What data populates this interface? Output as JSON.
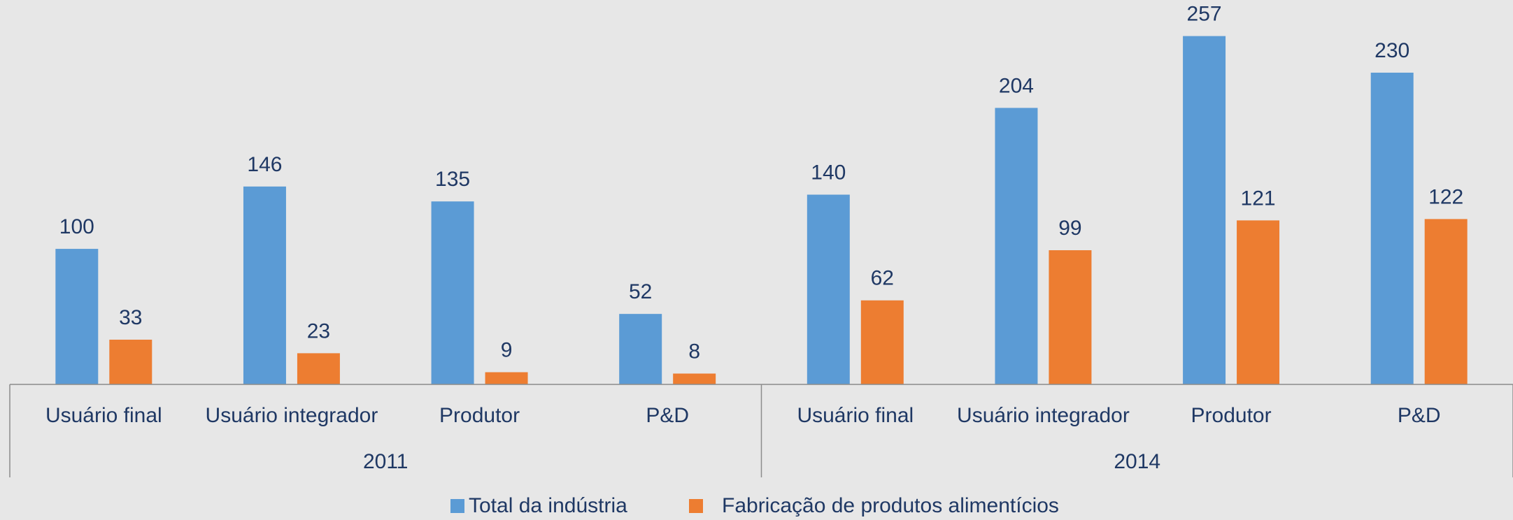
{
  "chart_data": {
    "type": "bar",
    "categories": [
      "Usuário final",
      "Usuário integrador",
      "Produtor",
      "P&D",
      "Usuário final",
      "Usuário integrador",
      "Produtor",
      "P&D"
    ],
    "groups": [
      "2011",
      "2014"
    ],
    "series": [
      {
        "name": "Total da indústria",
        "color": "#5b9bd5",
        "values": [
          100,
          146,
          135,
          52,
          140,
          204,
          257,
          230
        ]
      },
      {
        "name": "Fabricação de produtos alimentícios",
        "color": "#ed7d31",
        "values": [
          33,
          23,
          9,
          8,
          62,
          99,
          121,
          122
        ]
      }
    ],
    "ylim": [
      0,
      280
    ]
  }
}
